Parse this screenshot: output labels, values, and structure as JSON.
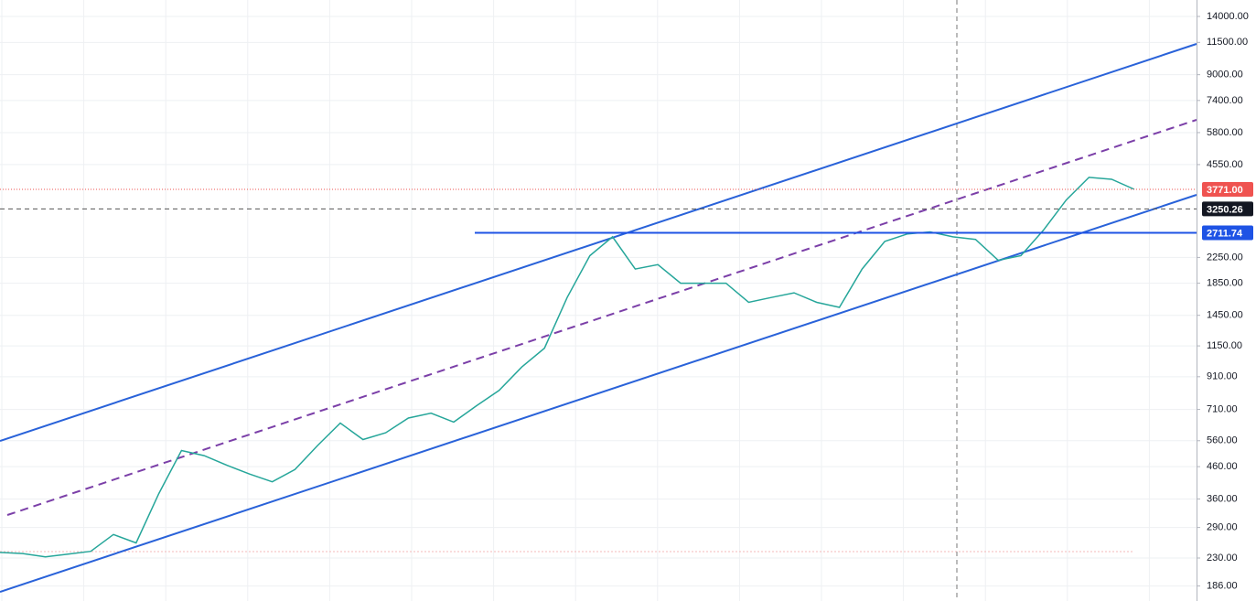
{
  "chart_data": {
    "type": "line",
    "log_scale": true,
    "grid": true,
    "color": "#26a69a",
    "ylim": [
      166,
      15860
    ],
    "yticks": [
      {
        "value": 14000,
        "label": "14000.00"
      },
      {
        "value": 11500,
        "label": "11500.00"
      },
      {
        "value": 9000,
        "label": "9000.00"
      },
      {
        "value": 7400,
        "label": "7400.00"
      },
      {
        "value": 5800,
        "label": "5800.00"
      },
      {
        "value": 4550,
        "label": "4550.00"
      },
      {
        "value": 2250,
        "label": "2250.00"
      },
      {
        "value": 1850,
        "label": "1850.00"
      },
      {
        "value": 1450,
        "label": "1450.00"
      },
      {
        "value": 1150,
        "label": "1150.00"
      },
      {
        "value": 910,
        "label": "910.00"
      },
      {
        "value": 710,
        "label": "710.00"
      },
      {
        "value": 560,
        "label": "560.00"
      },
      {
        "value": 460,
        "label": "460.00"
      },
      {
        "value": 360,
        "label": "360.00"
      },
      {
        "value": 290,
        "label": "290.00"
      },
      {
        "value": 230,
        "label": "230.00"
      },
      {
        "value": 186,
        "label": "186.00"
      }
    ],
    "values": [
      240,
      238,
      232,
      237,
      242,
      275,
      258,
      375,
      520,
      500,
      465,
      435,
      410,
      450,
      540,
      640,
      565,
      595,
      665,
      690,
      645,
      730,
      820,
      980,
      1130,
      1660,
      2280,
      2630,
      2060,
      2130,
      1850,
      1850,
      1850,
      1600,
      1660,
      1720,
      1600,
      1540,
      2060,
      2540,
      2690,
      2730,
      2630,
      2580,
      2200,
      2280,
      2770,
      3480,
      4130,
      4070,
      3771
    ],
    "price_labels": [
      {
        "value": 3771,
        "label": "3771.00",
        "color": "#ef5350",
        "style": "dotted"
      },
      {
        "value": 3250.26,
        "label": "3250.26",
        "color": "#131722",
        "style": "dashed"
      },
      {
        "value": 2711.74,
        "label": "2711.74",
        "color": "#1e53e5",
        "style": "solid"
      }
    ]
  }
}
